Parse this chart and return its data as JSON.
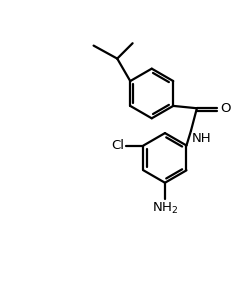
{
  "bg_color": "#ffffff",
  "line_color": "#000000",
  "line_width": 1.6,
  "font_size": 9.5,
  "figsize": [
    2.42,
    2.91
  ],
  "dpi": 100,
  "xlim": [
    0,
    10
  ],
  "ylim": [
    0,
    12
  ]
}
